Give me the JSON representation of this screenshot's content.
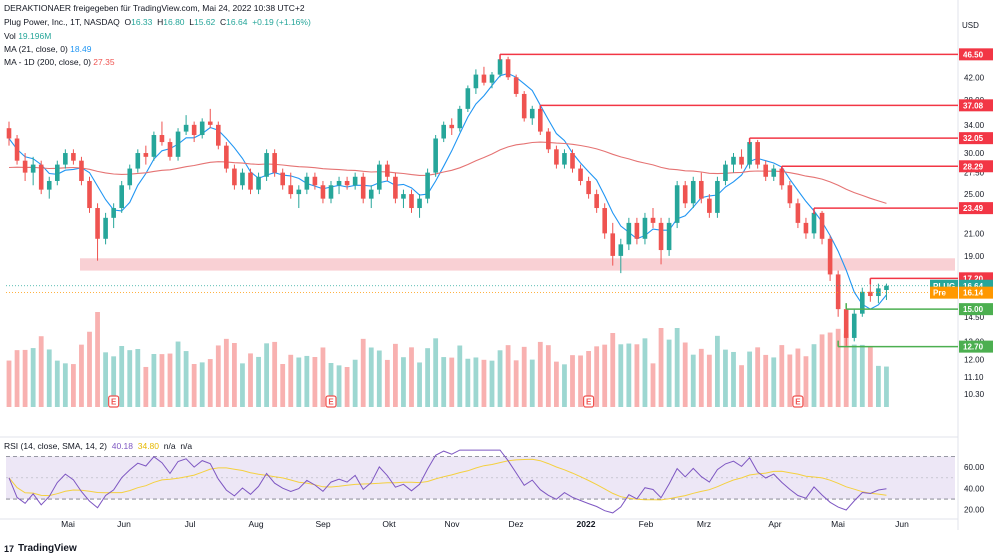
{
  "header": {
    "publisher": "DERAKTIONAER freigegeben für TradingView.com, Mai 24, 2022 10:38 UTC+2",
    "symbol_line": {
      "title": "Plug Power, Inc., 1T, NASDAQ",
      "o_label": "O",
      "o": "16.33",
      "h_label": "H",
      "h": "16.80",
      "l_label": "L",
      "l": "15.62",
      "c_label": "C",
      "c": "16.64",
      "change": "+0.19 (+1.16%)"
    },
    "vol_line": {
      "label": "Vol",
      "value": "19.196M"
    },
    "ma21_line": {
      "label": "MA (21, close, 0)",
      "value": "18.49"
    },
    "ma200_line": {
      "label": "MA - 1D (200, close, 0)",
      "value": "27.35"
    },
    "currency": "USD"
  },
  "footer": {
    "brand": "TradingView"
  },
  "colors": {
    "up": "#26a69a",
    "down": "#ef5350",
    "ma21": "#2196f3",
    "ma200": "#e57373",
    "resistance": "#f23645",
    "support": "#4caf50",
    "zone": "#f8c8cd",
    "rsi": "#7e57c2",
    "rsi_ma": "#f4d03f",
    "rsi_band": "#ede7f6",
    "plug_tag": "#26a69a",
    "pre_tag": "#ff9800"
  },
  "chart_data": [
    {
      "type": "candlestick",
      "title": "Plug Power, Inc., 1T, NASDAQ",
      "y_scale": "log",
      "ylim": [
        9.8,
        50
      ],
      "y_ticks": [
        42.0,
        38.0,
        34.0,
        30.0,
        27.5,
        25.0,
        21.0,
        19.0,
        17.0,
        14.5,
        13.0,
        12.0,
        11.1,
        10.3
      ],
      "x_ticks": [
        "Mai",
        "Jun",
        "Jul",
        "Aug",
        "Sep",
        "Okt",
        "Nov",
        "Dez",
        "2022",
        "Feb",
        "Mrz",
        "Apr",
        "Mai",
        "Jun"
      ],
      "candles_approx": [
        {
          "o": 33.5,
          "h": 34.5,
          "l": 31.0,
          "c": 32.0
        },
        {
          "o": 32.0,
          "h": 32.5,
          "l": 28.5,
          "c": 29.0
        },
        {
          "o": 29.0,
          "h": 30.0,
          "l": 26.5,
          "c": 27.5
        },
        {
          "o": 27.5,
          "h": 29.5,
          "l": 26.0,
          "c": 28.5
        },
        {
          "o": 28.5,
          "h": 29.0,
          "l": 25.0,
          "c": 25.5
        },
        {
          "o": 25.5,
          "h": 27.0,
          "l": 24.5,
          "c": 26.5
        },
        {
          "o": 26.5,
          "h": 29.0,
          "l": 26.0,
          "c": 28.5
        },
        {
          "o": 28.5,
          "h": 30.5,
          "l": 28.0,
          "c": 30.0
        },
        {
          "o": 30.0,
          "h": 30.5,
          "l": 28.5,
          "c": 29.0
        },
        {
          "o": 29.0,
          "h": 29.5,
          "l": 26.0,
          "c": 26.5
        },
        {
          "o": 26.5,
          "h": 27.0,
          "l": 23.0,
          "c": 23.5
        },
        {
          "o": 23.5,
          "h": 24.0,
          "l": 18.6,
          "c": 20.5
        },
        {
          "o": 20.5,
          "h": 23.0,
          "l": 20.0,
          "c": 22.5
        },
        {
          "o": 22.5,
          "h": 24.0,
          "l": 21.5,
          "c": 23.5
        },
        {
          "o": 23.5,
          "h": 26.5,
          "l": 23.0,
          "c": 26.0
        },
        {
          "o": 26.0,
          "h": 28.5,
          "l": 25.5,
          "c": 28.0
        },
        {
          "o": 28.0,
          "h": 30.5,
          "l": 27.5,
          "c": 30.0
        },
        {
          "o": 30.0,
          "h": 31.0,
          "l": 28.5,
          "c": 29.5
        },
        {
          "o": 29.5,
          "h": 33.0,
          "l": 29.0,
          "c": 32.5
        },
        {
          "o": 32.5,
          "h": 34.5,
          "l": 31.0,
          "c": 31.5
        },
        {
          "o": 31.5,
          "h": 32.0,
          "l": 29.0,
          "c": 29.5
        },
        {
          "o": 29.5,
          "h": 33.5,
          "l": 29.0,
          "c": 33.0
        },
        {
          "o": 33.0,
          "h": 35.5,
          "l": 32.5,
          "c": 34.0
        },
        {
          "o": 34.0,
          "h": 34.5,
          "l": 31.5,
          "c": 32.5
        },
        {
          "o": 32.5,
          "h": 35.0,
          "l": 32.0,
          "c": 34.5
        },
        {
          "o": 34.5,
          "h": 36.5,
          "l": 33.5,
          "c": 34.0
        },
        {
          "o": 34.0,
          "h": 34.5,
          "l": 30.5,
          "c": 31.0
        },
        {
          "o": 31.0,
          "h": 31.5,
          "l": 27.5,
          "c": 28.0
        },
        {
          "o": 28.0,
          "h": 28.5,
          "l": 25.5,
          "c": 26.0
        },
        {
          "o": 26.0,
          "h": 28.0,
          "l": 25.5,
          "c": 27.5
        },
        {
          "o": 27.5,
          "h": 28.0,
          "l": 25.0,
          "c": 25.5
        },
        {
          "o": 25.5,
          "h": 27.5,
          "l": 25.0,
          "c": 27.0
        },
        {
          "o": 27.0,
          "h": 30.5,
          "l": 26.5,
          "c": 30.0
        },
        {
          "o": 30.0,
          "h": 30.5,
          "l": 27.0,
          "c": 27.5
        },
        {
          "o": 27.5,
          "h": 28.0,
          "l": 25.5,
          "c": 26.0
        },
        {
          "o": 26.0,
          "h": 27.5,
          "l": 24.5,
          "c": 25.0
        },
        {
          "o": 25.0,
          "h": 26.0,
          "l": 23.5,
          "c": 25.5
        },
        {
          "o": 25.5,
          "h": 27.5,
          "l": 25.0,
          "c": 27.0
        },
        {
          "o": 27.0,
          "h": 27.5,
          "l": 25.5,
          "c": 26.0
        },
        {
          "o": 26.0,
          "h": 26.5,
          "l": 24.0,
          "c": 24.5
        },
        {
          "o": 24.5,
          "h": 26.5,
          "l": 24.0,
          "c": 26.0
        },
        {
          "o": 26.0,
          "h": 27.0,
          "l": 25.0,
          "c": 26.5
        },
        {
          "o": 26.5,
          "h": 27.0,
          "l": 25.5,
          "c": 26.0
        },
        {
          "o": 26.0,
          "h": 27.5,
          "l": 25.5,
          "c": 27.0
        },
        {
          "o": 27.0,
          "h": 27.5,
          "l": 24.0,
          "c": 24.5
        },
        {
          "o": 24.5,
          "h": 26.0,
          "l": 23.5,
          "c": 25.5
        },
        {
          "o": 25.5,
          "h": 29.0,
          "l": 25.0,
          "c": 28.5
        },
        {
          "o": 28.5,
          "h": 29.0,
          "l": 26.5,
          "c": 27.0
        },
        {
          "o": 27.0,
          "h": 27.5,
          "l": 24.0,
          "c": 24.5
        },
        {
          "o": 24.5,
          "h": 25.5,
          "l": 23.5,
          "c": 25.0
        },
        {
          "o": 25.0,
          "h": 25.5,
          "l": 23.0,
          "c": 23.5
        },
        {
          "o": 23.5,
          "h": 25.0,
          "l": 22.5,
          "c": 24.5
        },
        {
          "o": 24.5,
          "h": 28.0,
          "l": 24.0,
          "c": 27.5
        },
        {
          "o": 27.5,
          "h": 32.5,
          "l": 27.0,
          "c": 32.0
        },
        {
          "o": 32.0,
          "h": 34.5,
          "l": 31.5,
          "c": 34.0
        },
        {
          "o": 34.0,
          "h": 35.0,
          "l": 32.5,
          "c": 33.5
        },
        {
          "o": 33.5,
          "h": 37.0,
          "l": 33.0,
          "c": 36.5
        },
        {
          "o": 36.5,
          "h": 40.5,
          "l": 36.0,
          "c": 40.0
        },
        {
          "o": 40.0,
          "h": 43.5,
          "l": 39.0,
          "c": 42.5
        },
        {
          "o": 42.5,
          "h": 44.0,
          "l": 40.5,
          "c": 41.0
        },
        {
          "o": 41.0,
          "h": 43.0,
          "l": 40.0,
          "c": 42.5
        },
        {
          "o": 42.5,
          "h": 46.5,
          "l": 42.0,
          "c": 45.5
        },
        {
          "o": 45.5,
          "h": 46.0,
          "l": 41.5,
          "c": 42.0
        },
        {
          "o": 42.0,
          "h": 42.5,
          "l": 38.5,
          "c": 39.0
        },
        {
          "o": 39.0,
          "h": 39.5,
          "l": 34.5,
          "c": 35.0
        },
        {
          "o": 35.0,
          "h": 37.0,
          "l": 34.0,
          "c": 36.5
        },
        {
          "o": 36.5,
          "h": 37.08,
          "l": 32.5,
          "c": 33.0
        },
        {
          "o": 33.0,
          "h": 33.5,
          "l": 30.0,
          "c": 30.5
        },
        {
          "o": 30.5,
          "h": 31.0,
          "l": 28.0,
          "c": 28.5
        },
        {
          "o": 28.5,
          "h": 30.5,
          "l": 28.0,
          "c": 30.0
        },
        {
          "o": 30.0,
          "h": 30.5,
          "l": 27.5,
          "c": 28.0
        },
        {
          "o": 28.0,
          "h": 28.5,
          "l": 26.0,
          "c": 26.5
        },
        {
          "o": 26.5,
          "h": 27.0,
          "l": 24.5,
          "c": 25.0
        },
        {
          "o": 25.0,
          "h": 25.5,
          "l": 23.0,
          "c": 23.5
        },
        {
          "o": 23.5,
          "h": 24.0,
          "l": 20.5,
          "c": 21.0
        },
        {
          "o": 21.0,
          "h": 22.0,
          "l": 18.2,
          "c": 19.0
        },
        {
          "o": 19.0,
          "h": 20.5,
          "l": 17.6,
          "c": 20.0
        },
        {
          "o": 20.0,
          "h": 22.5,
          "l": 19.5,
          "c": 22.0
        },
        {
          "o": 22.0,
          "h": 22.5,
          "l": 20.0,
          "c": 20.5
        },
        {
          "o": 20.5,
          "h": 23.0,
          "l": 20.0,
          "c": 22.5
        },
        {
          "o": 22.5,
          "h": 23.5,
          "l": 21.5,
          "c": 22.0
        },
        {
          "o": 22.0,
          "h": 22.5,
          "l": 18.3,
          "c": 19.5
        },
        {
          "o": 19.5,
          "h": 22.5,
          "l": 19.0,
          "c": 22.0
        },
        {
          "o": 22.0,
          "h": 26.5,
          "l": 21.5,
          "c": 26.0
        },
        {
          "o": 26.0,
          "h": 26.5,
          "l": 23.5,
          "c": 24.0
        },
        {
          "o": 24.0,
          "h": 27.0,
          "l": 23.5,
          "c": 26.5
        },
        {
          "o": 26.5,
          "h": 27.5,
          "l": 24.0,
          "c": 24.5
        },
        {
          "o": 24.5,
          "h": 25.0,
          "l": 22.5,
          "c": 23.0
        },
        {
          "o": 23.0,
          "h": 27.0,
          "l": 22.5,
          "c": 26.5
        },
        {
          "o": 26.5,
          "h": 29.0,
          "l": 26.0,
          "c": 28.5
        },
        {
          "o": 28.5,
          "h": 30.0,
          "l": 27.5,
          "c": 29.5
        },
        {
          "o": 29.5,
          "h": 30.5,
          "l": 28.0,
          "c": 28.5
        },
        {
          "o": 28.5,
          "h": 32.05,
          "l": 28.0,
          "c": 31.5
        },
        {
          "o": 31.5,
          "h": 31.8,
          "l": 28.0,
          "c": 28.5
        },
        {
          "o": 28.5,
          "h": 29.0,
          "l": 26.5,
          "c": 27.0
        },
        {
          "o": 27.0,
          "h": 28.5,
          "l": 26.5,
          "c": 28.0
        },
        {
          "o": 28.0,
          "h": 28.29,
          "l": 25.5,
          "c": 26.0
        },
        {
          "o": 26.0,
          "h": 26.5,
          "l": 23.5,
          "c": 24.0
        },
        {
          "o": 24.0,
          "h": 24.5,
          "l": 21.5,
          "c": 22.0
        },
        {
          "o": 22.0,
          "h": 22.5,
          "l": 20.5,
          "c": 21.0
        },
        {
          "o": 21.0,
          "h": 23.49,
          "l": 20.5,
          "c": 23.0
        },
        {
          "o": 23.0,
          "h": 23.2,
          "l": 20.0,
          "c": 20.5
        },
        {
          "o": 20.5,
          "h": 20.8,
          "l": 17.0,
          "c": 17.5
        },
        {
          "o": 17.5,
          "h": 17.8,
          "l": 14.5,
          "c": 15.0
        },
        {
          "o": 15.0,
          "h": 15.2,
          "l": 12.7,
          "c": 13.2
        },
        {
          "o": 13.2,
          "h": 15.0,
          "l": 13.0,
          "c": 14.7
        },
        {
          "o": 14.7,
          "h": 16.5,
          "l": 14.5,
          "c": 16.2
        },
        {
          "o": 16.2,
          "h": 17.2,
          "l": 15.5,
          "c": 15.9
        },
        {
          "o": 15.9,
          "h": 16.8,
          "l": 15.4,
          "c": 16.45
        },
        {
          "o": 16.33,
          "h": 16.8,
          "l": 15.62,
          "c": 16.64
        }
      ],
      "horizontal_levels": [
        {
          "price": 46.5,
          "label": "46.50",
          "kind": "resistance"
        },
        {
          "price": 37.08,
          "label": "37.08",
          "kind": "resistance"
        },
        {
          "price": 32.05,
          "label": "32.05",
          "kind": "resistance"
        },
        {
          "price": 28.29,
          "label": "28.29",
          "kind": "resistance"
        },
        {
          "price": 23.49,
          "label": "23.49",
          "kind": "resistance"
        },
        {
          "price": 17.2,
          "label": "17.20",
          "kind": "resistance"
        },
        {
          "price": 15.0,
          "label": "15.00",
          "kind": "support"
        },
        {
          "price": 12.7,
          "label": "12.70",
          "kind": "support"
        }
      ],
      "support_zone": [
        17.8,
        18.8
      ],
      "price_tags": [
        {
          "name": "PLUG",
          "price": 16.64,
          "label": "16.64"
        },
        {
          "name": "Pre",
          "price": 16.14,
          "label": "16.14"
        }
      ],
      "earnings_marker_label": "E",
      "earnings_markers_x_index": [
        13,
        40,
        72,
        98,
        126
      ]
    },
    {
      "type": "line",
      "title": "RSI (14, close, SMA, 14, 2)",
      "legend": {
        "label": "RSI (14, close, SMA, 14, 2)",
        "rsi": "40.18",
        "ma": "34.80",
        "extra1": "n/a",
        "extra2": "n/a"
      },
      "ylim": [
        15,
        78
      ],
      "y_ticks": [
        60.0,
        40.0,
        20.0
      ],
      "bands": [
        30,
        70
      ],
      "mid": 50
    }
  ]
}
